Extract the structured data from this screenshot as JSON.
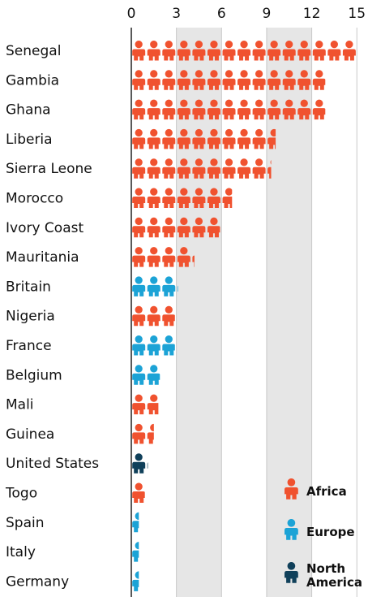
{
  "chart_data": {
    "type": "bar",
    "title": "",
    "xlabel": "",
    "ylabel": "",
    "xlim": [
      0,
      15
    ],
    "xticks": [
      "0",
      "3",
      "6",
      "9",
      "12",
      "15"
    ],
    "grid": true,
    "legend_position": "bottom-right",
    "categories": [
      "Senegal",
      "Gambia",
      "Ghana",
      "Liberia",
      "Sierra Leone",
      "Morocco",
      "Ivory Coast",
      "Mauritania",
      "Britain",
      "Nigeria",
      "France",
      "Belgium",
      "Mali",
      "Guinea",
      "United States",
      "Togo",
      "Spain",
      "Italy",
      "Germany"
    ],
    "values": [
      15,
      12.9,
      12.9,
      9.6,
      9.3,
      6.7,
      5.9,
      4.2,
      3.1,
      2.9,
      2.9,
      1.9,
      1.8,
      1.5,
      1.1,
      0.9,
      0.5,
      0.5,
      0.5
    ],
    "groups": [
      "Africa",
      "Africa",
      "Africa",
      "Africa",
      "Africa",
      "Africa",
      "Africa",
      "Africa",
      "Europe",
      "Africa",
      "Europe",
      "Europe",
      "Africa",
      "Africa",
      "North America",
      "Africa",
      "Europe",
      "Europe",
      "Europe"
    ],
    "legend": [
      {
        "key": "Africa",
        "label": [
          "Africa"
        ],
        "color": "#f0522f"
      },
      {
        "key": "Europe",
        "label": [
          "Europe"
        ],
        "color": "#1ca3d6"
      },
      {
        "key": "North America",
        "label": [
          "North",
          "America"
        ],
        "color": "#10405a"
      }
    ]
  }
}
